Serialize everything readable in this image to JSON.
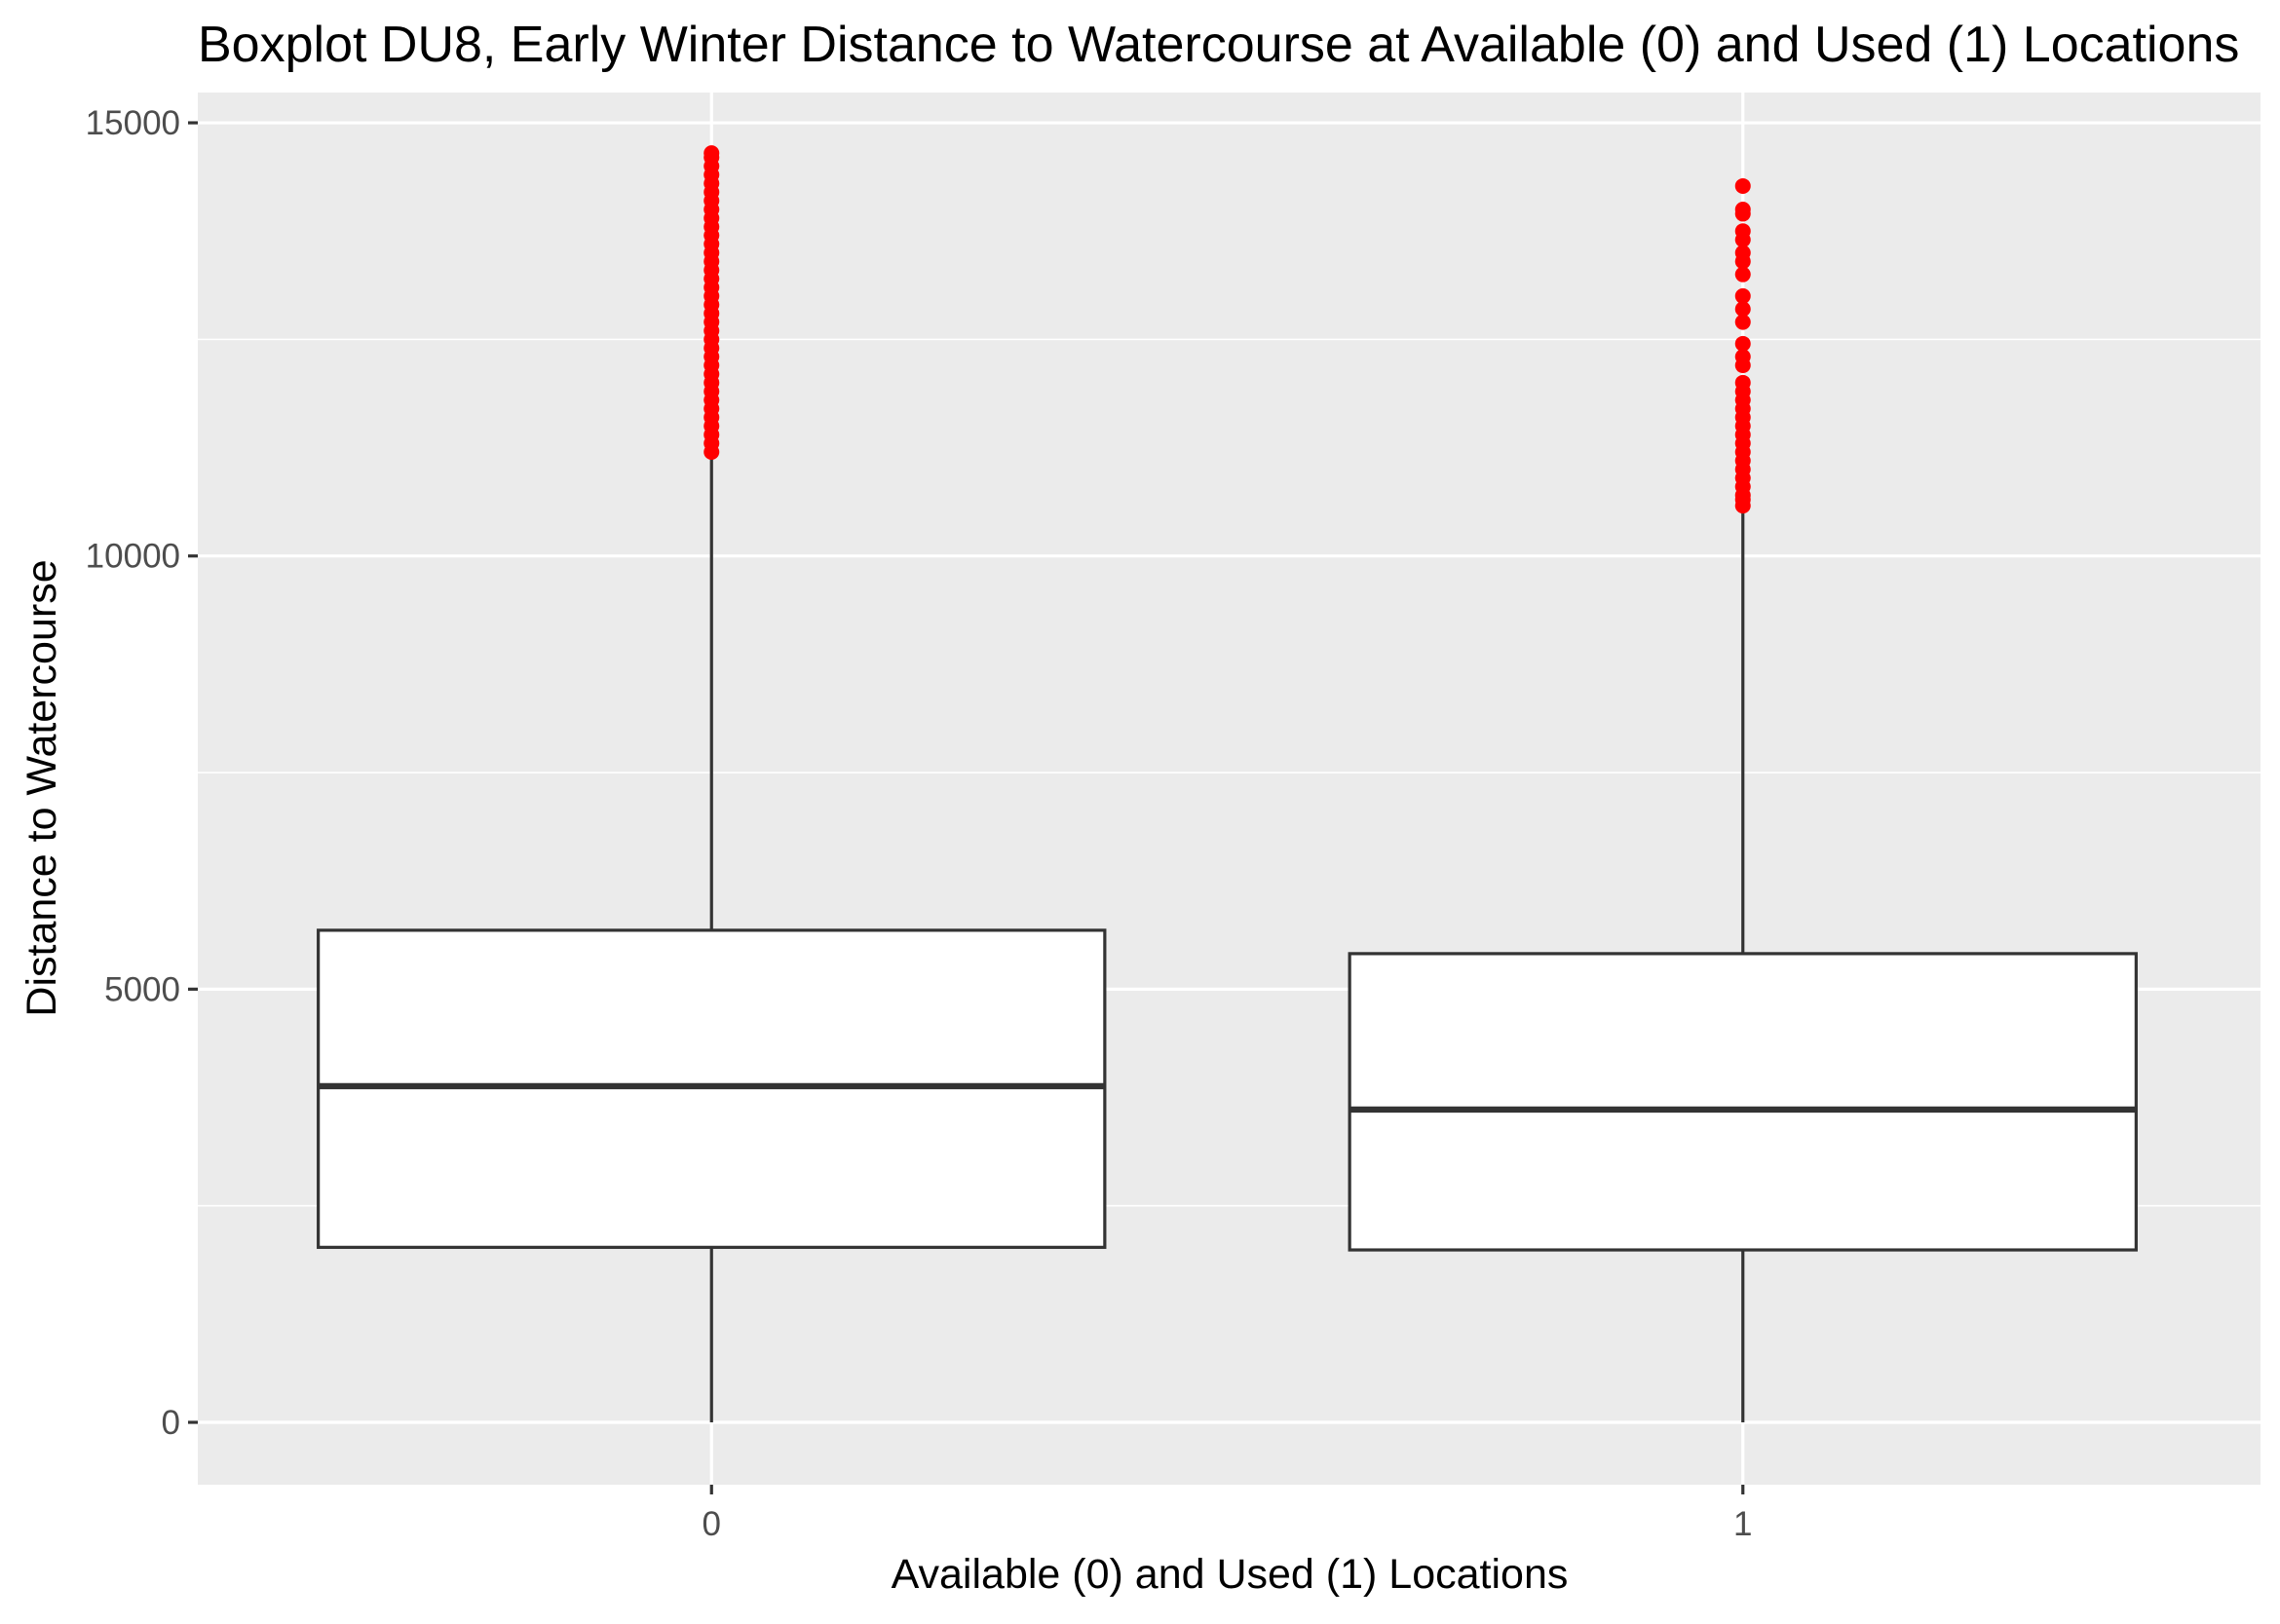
{
  "chart_data": {
    "type": "boxplot",
    "title": "Boxplot DU8, Early Winter Distance to Watercourse at Available (0) and Used (1) Locations",
    "xlabel": "Available (0) and Used (1) Locations",
    "ylabel": "Distance to Watercourse",
    "y_ticks": [
      0,
      5000,
      10000,
      15000
    ],
    "y_tick_labels": [
      "0",
      "5000",
      "10000",
      "15000"
    ],
    "ylim": [
      -750,
      15380
    ],
    "categories": [
      "0",
      "1"
    ],
    "boxes": [
      {
        "category": "0",
        "min": 0,
        "q1": 2020,
        "median": 3880,
        "q3": 5680,
        "whisker_high": 11180,
        "outliers": [
          11200,
          11300,
          11400,
          11500,
          11600,
          11700,
          11800,
          11900,
          12000,
          12100,
          12200,
          12300,
          12400,
          12500,
          12600,
          12700,
          12800,
          12900,
          13000,
          13100,
          13200,
          13300,
          13400,
          13500,
          13600,
          13700,
          13800,
          13900,
          14000,
          14100,
          14200,
          14300,
          14400,
          14500,
          14600,
          14650
        ]
      },
      {
        "category": "1",
        "min": 0,
        "q1": 1990,
        "median": 3610,
        "q3": 5410,
        "whisker_high": 10560,
        "outliers": [
          10580,
          10650,
          10700,
          10800,
          10900,
          11000,
          11100,
          11200,
          11300,
          11400,
          11500,
          11600,
          11700,
          11800,
          11900,
          12000,
          12200,
          12300,
          12450,
          12700,
          12850,
          13000,
          13250,
          13400,
          13500,
          13650,
          13750,
          13950,
          14000,
          14270
        ]
      }
    ],
    "grid": true,
    "legend": "none",
    "colors": {
      "panel_background": "#ebebeb",
      "grid_major": "#ffffff",
      "box_fill": "#ffffff",
      "box_stroke": "#333333",
      "outlier": "#ff0000",
      "tick_text": "#4d4d4d"
    }
  }
}
